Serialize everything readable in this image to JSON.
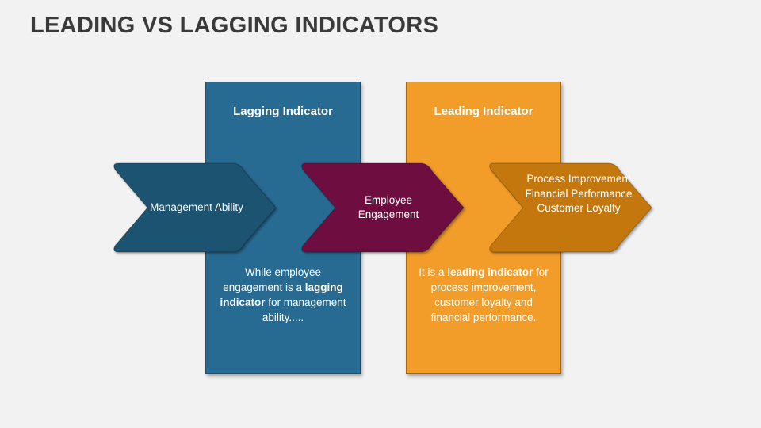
{
  "title": "LEADING VS LAGGING INDICATORS",
  "columns": {
    "lagging": {
      "heading": "Lagging Indicator",
      "color": "#276b93",
      "body": {
        "a": "While employee engagement is a ",
        "b": "lagging indicator",
        "c": " for management ability....."
      }
    },
    "leading": {
      "heading": "Leading Indicator",
      "color": "#f29c2a",
      "body": {
        "a": "It is a ",
        "b": "leading indicator",
        "c": " for process improvement, customer loyalty and financial performance."
      }
    }
  },
  "chevrons": [
    {
      "lines": [
        "Management Ability"
      ],
      "color": "#1f526f"
    },
    {
      "lines": [
        "Employee",
        "Engagement"
      ],
      "color": "#6d0f3f"
    },
    {
      "lines": [
        "Process Improvement",
        "Financial Performance",
        "Customer Loyalty"
      ],
      "color": "#c4770b"
    }
  ]
}
